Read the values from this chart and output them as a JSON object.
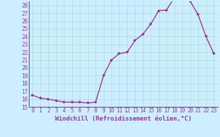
{
  "x": [
    0,
    1,
    2,
    3,
    4,
    5,
    6,
    7,
    8,
    9,
    10,
    11,
    12,
    13,
    14,
    15,
    16,
    17,
    18,
    19,
    20,
    21,
    22,
    23
  ],
  "y": [
    16.5,
    16.1,
    16.0,
    15.8,
    15.6,
    15.6,
    15.6,
    15.5,
    15.6,
    19.0,
    21.0,
    21.8,
    22.0,
    23.5,
    24.3,
    25.6,
    27.3,
    27.4,
    29.0,
    28.8,
    28.5,
    26.8,
    24.0,
    21.8
  ],
  "line_color": "#993399",
  "marker": "+",
  "bg_color": "#cceeff",
  "grid_color": "#aaddcc",
  "xlabel": "Windchill (Refroidissement éolien,°C)",
  "ylim": [
    15,
    28.5
  ],
  "yticks": [
    15,
    16,
    17,
    18,
    19,
    20,
    21,
    22,
    23,
    24,
    25,
    26,
    27,
    28
  ],
  "xticks": [
    0,
    1,
    2,
    3,
    4,
    5,
    6,
    7,
    8,
    9,
    10,
    11,
    12,
    13,
    14,
    15,
    16,
    17,
    18,
    19,
    20,
    21,
    22,
    23
  ],
  "tick_fontsize": 5.5,
  "xlabel_fontsize": 6.5,
  "line_width": 1.0,
  "marker_size": 3.5,
  "marker_edge_width": 1.2
}
